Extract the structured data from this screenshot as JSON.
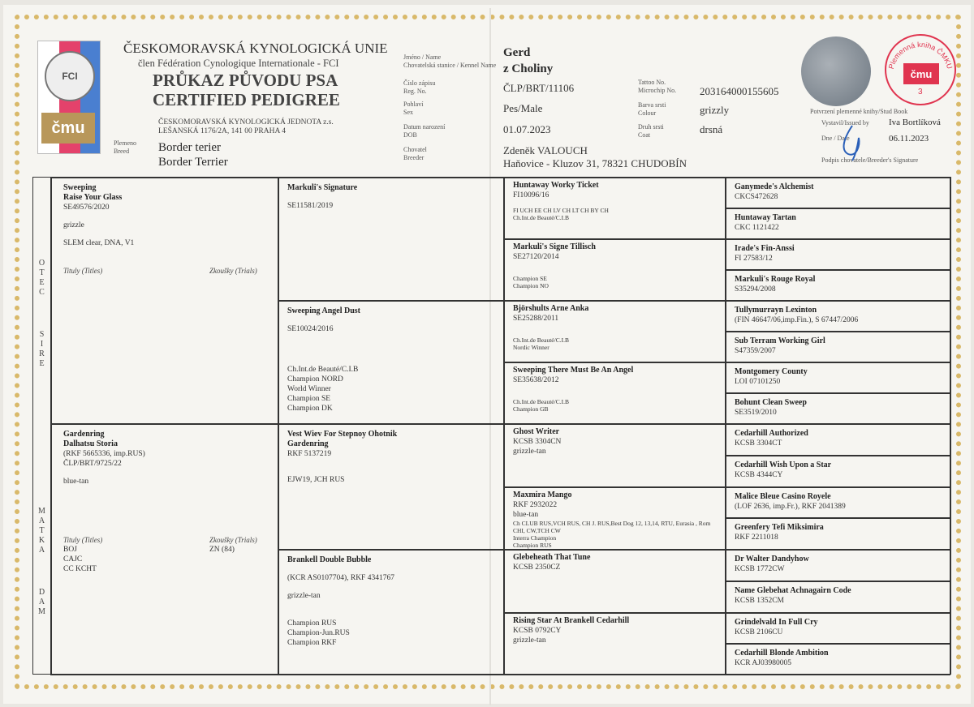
{
  "header": {
    "org": "ČESKOMORAVSKÁ KYNOLOGICKÁ UNIE",
    "member": "člen Fédération Cynologique Internationale - FCI",
    "title_cz": "PRŮKAZ PŮVODU PSA",
    "title_en": "CERTIFIED PEDIGREE",
    "issuer_line1": "ČESKOMORAVSKÁ KYNOLOGICKÁ JEDNOTA z.s.",
    "issuer_line2": "LEŠANSKÁ 1176/2A, 141 00 PRAHA 4",
    "logo_fci": "FCI",
    "logo_cmu": "čmu",
    "breed_label_cz": "Plemeno",
    "breed_label_en": "Breed",
    "breed_cz": "Border terier",
    "breed_en": "Border Terrier"
  },
  "dog": {
    "name_label_cz": "Jméno / Name",
    "name_label_en": "Chovatelská stanice / Kennel Name",
    "name": "Gerd",
    "kennel": "z Choliny",
    "reg_label_cz": "Číslo zápisu",
    "reg_label_en": "Reg. No.",
    "reg": "ČLP/BRT/11106",
    "sex_label_cz": "Pohlaví",
    "sex_label_en": "Sex",
    "sex": "Pes/Male",
    "dob_label_cz": "Datum narození",
    "dob_label_en": "DOB",
    "dob": "01.07.2023",
    "breeder_label_cz": "Chovatel",
    "breeder_label_en": "Breeder",
    "breeder_name": "Zdeněk VALOUCH",
    "breeder_address": "Haňovice - Kluzov 31, 78321 CHUDOBÍN",
    "chip_label_1": "Tattoo No.",
    "chip_label_2": "Microchip No.",
    "chip": "203164000155605",
    "colour_label_cz": "Barva srsti",
    "colour_label_en": "Colour",
    "colour": "grizzly",
    "coat_label_cz": "Druh srsti",
    "coat_label_en": "Coat",
    "coat": "drsná"
  },
  "issue": {
    "studbook_label": "Potvrzení plemenné knihy/Stud Book",
    "issued_by_label": "Vystavil/Issued by",
    "issued_by": "Iva Bortlíková",
    "date_label": "Dne / Date",
    "date": "06.11.2023",
    "signature_label": "Podpis chovatele/Breeder's Signature",
    "stamp_text": "Plemenná kniha ČMKU",
    "stamp_logo": "čmu",
    "stamp_number": "3"
  },
  "sides": {
    "sire": "O T E C",
    "sire_en": "S I R E",
    "dam": "M A T K A",
    "dam_en": "D A M",
    "titles_label": "Tituly (Titles)",
    "trials_label": "Zkoušky (Trials)"
  },
  "pedigree": {
    "gen1": [
      {
        "name": [
          "Sweeping",
          "Raise Your Glass"
        ],
        "lines": [
          "SE49576/2020",
          "",
          "grizzle",
          "",
          "SLEM clear, DNA, V1"
        ],
        "titles": [],
        "trials": []
      },
      {
        "name": [
          "Gardenring",
          "Dalhatsu Storia"
        ],
        "lines": [
          "(RKF 5665336, imp.RUS)",
          "ČLP/BRT/9725/22",
          "",
          "blue-tan"
        ],
        "titles": [
          "BOJ",
          "CAJC",
          "CC KCHT"
        ],
        "trials": [
          "ZN (84)"
        ]
      }
    ],
    "gen2": [
      {
        "name": [
          "Markuli's Signature"
        ],
        "lines": [
          "",
          "SE11581/2019"
        ],
        "small": []
      },
      {
        "name": [
          "Sweeping Angel Dust"
        ],
        "lines": [
          "",
          "SE10024/2016"
        ],
        "small": [
          "Ch.Int.de Beauté/C.I.B",
          "Champion NORD",
          "World Winner",
          "Champion SE",
          "Champion DK"
        ]
      },
      {
        "name": [
          "Vest Wiev For Stepnoy Ohotnik",
          "Gardenring"
        ],
        "lines": [
          "RKF 5137219",
          "",
          "",
          "EJW19, JCH RUS"
        ],
        "small": []
      },
      {
        "name": [
          "Brankell Double Bubble"
        ],
        "lines": [
          "",
          "(KCR AS0107704), RKF 4341767",
          "",
          "grizzle-tan"
        ],
        "small": [
          "Champion RUS",
          "Champion-Jun.RUS",
          "Champion RKF"
        ]
      }
    ],
    "gen3": [
      {
        "name": [
          "Huntaway Worky Ticket"
        ],
        "lines": [
          "FI10096/16"
        ],
        "small": [
          "FI UCH EE CH LV CH LT CH BY CH",
          "Ch.Int.de Beauté/C.I.B"
        ]
      },
      {
        "name": [
          "Markuli's Signe Tillisch"
        ],
        "lines": [
          "SE27120/2014"
        ],
        "small": [
          "Champion SE",
          "Champion NO"
        ]
      },
      {
        "name": [
          "Björshults Arne Anka"
        ],
        "lines": [
          "SE25288/2011"
        ],
        "small": [
          "Ch.Int.de Beauté/C.I.B",
          "Nordic Winner"
        ]
      },
      {
        "name": [
          "Sweeping There Must Be An Angel"
        ],
        "lines": [
          "SE35638/2012"
        ],
        "small": [
          "Ch.Int.de Beauté/C.I.B",
          "Champion GB"
        ]
      },
      {
        "name": [
          "Ghost Writer"
        ],
        "lines": [
          "KCSB 3304CN",
          "grizzle-tan"
        ],
        "small": []
      },
      {
        "name": [
          "Maxmira Mango"
        ],
        "lines": [
          "RKF 2932022",
          "blue-tan"
        ],
        "small": [
          "Ch CLUB RUS,VCH RUS, CH J. RUS,Best Dog 12, 13,14, RTU, Eurasia , Rom",
          "CHI, CW,TCH CW",
          "Interra Champion",
          "Champion RUS"
        ]
      },
      {
        "name": [
          "Glebeheath That Tune"
        ],
        "lines": [
          "KCSB 2350CZ"
        ],
        "small": []
      },
      {
        "name": [
          "Rising Star At Brankell Cedarhill"
        ],
        "lines": [
          "KCSB 0792CY",
          "grizzle-tan"
        ],
        "small": []
      }
    ],
    "gen4": [
      {
        "name": "Ganymede's Alchemist",
        "reg": "CKCS472628"
      },
      {
        "name": "Huntaway Tartan",
        "reg": "CKC 1121422"
      },
      {
        "name": "Irade's Fin-Anssi",
        "reg": "FI 27583/12"
      },
      {
        "name": "Markuli's Rouge Royal",
        "reg": "S35294/2008"
      },
      {
        "name": "Tullymurrayn Lexinton",
        "reg": "(FIN 46647/06,imp.Fin.), S 67447/2006"
      },
      {
        "name": "Sub Terram Working Girl",
        "reg": "S47359/2007"
      },
      {
        "name": "Montgomery County",
        "reg": "LOI 07101250"
      },
      {
        "name": "Bohunt Clean Sweep",
        "reg": "SE3519/2010"
      },
      {
        "name": "Cedarhill Authorized",
        "reg": "KCSB 3304CT"
      },
      {
        "name": "Cedarhill Wish Upon a Star",
        "reg": "KCSB 4344CY"
      },
      {
        "name": "Malice Bleue Casino Royele",
        "reg": "(LOF 2636, imp.Fr.), RKF 2041389"
      },
      {
        "name": "Greenfery Tefi Miksimira",
        "reg": "RKF 2211018"
      },
      {
        "name": "Dr Walter Dandyhow",
        "reg": "KCSB 1772CW"
      },
      {
        "name": "Name Glebehat Achnagairn Code",
        "reg": "KCSB 1352CM"
      },
      {
        "name": "Grindelvald In Full Cry",
        "reg": "KCSB 2106CU"
      },
      {
        "name": "Cedarhill Blonde Ambition",
        "reg": "KCR AJ03980005"
      }
    ]
  }
}
